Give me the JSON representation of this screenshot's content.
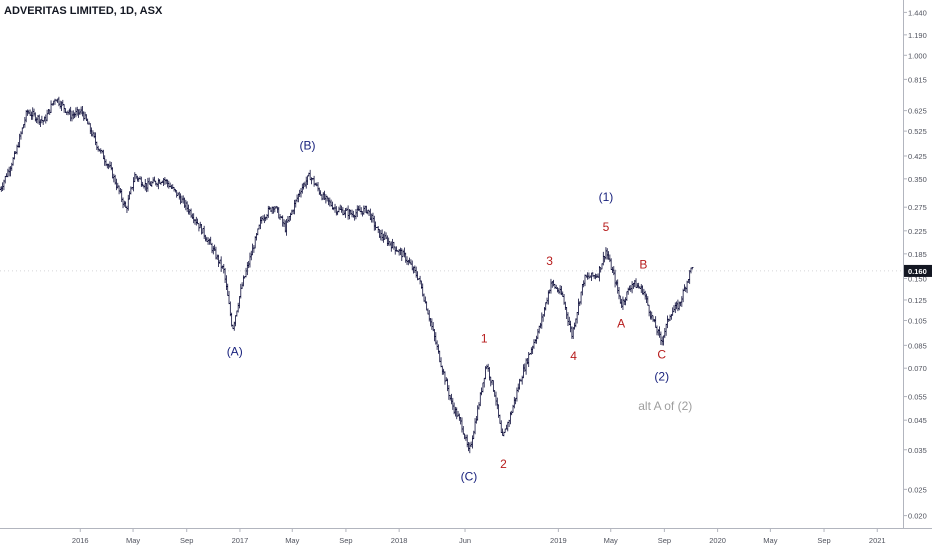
{
  "chart_data": {
    "type": "ohlc",
    "title": "ADVERITAS LIMITED, 1D, ASX",
    "y_scale": "log",
    "ylim": [
      0.018,
      1.6
    ],
    "xlim": [
      "2015-07-01",
      "2021-03-01"
    ],
    "y_ticks": [
      "0.020",
      "0.025",
      "0.035",
      "0.045",
      "0.055",
      "0.070",
      "0.085",
      "0.105",
      "0.125",
      "0.150",
      "0.185",
      "0.225",
      "0.275",
      "0.350",
      "0.425",
      "0.525",
      "0.625",
      "0.815",
      "1.000",
      "1.190",
      "1.440"
    ],
    "x_ticks": [
      {
        "label": "2016",
        "date": "2016-01-01"
      },
      {
        "label": "May",
        "date": "2016-05-01"
      },
      {
        "label": "Sep",
        "date": "2016-09-01"
      },
      {
        "label": "2017",
        "date": "2017-01-01"
      },
      {
        "label": "May",
        "date": "2017-05-01"
      },
      {
        "label": "Sep",
        "date": "2017-09-01"
      },
      {
        "label": "2018",
        "date": "2018-01-01"
      },
      {
        "label": "Jun",
        "date": "2018-06-01"
      },
      {
        "label": "2019",
        "date": "2019-01-01"
      },
      {
        "label": "May",
        "date": "2019-05-01"
      },
      {
        "label": "Sep",
        "date": "2019-09-01"
      },
      {
        "label": "2020",
        "date": "2020-01-01"
      },
      {
        "label": "May",
        "date": "2020-05-01"
      },
      {
        "label": "Sep",
        "date": "2020-09-01"
      },
      {
        "label": "2021",
        "date": "2021-01-01"
      }
    ],
    "price_path": [
      [
        "2015-07-01",
        0.32
      ],
      [
        "2015-08-05",
        0.43
      ],
      [
        "2015-09-01",
        0.62
      ],
      [
        "2015-10-10",
        0.57
      ],
      [
        "2015-11-05",
        0.7
      ],
      [
        "2015-12-10",
        0.6
      ],
      [
        "2016-01-05",
        0.62
      ],
      [
        "2016-02-10",
        0.46
      ],
      [
        "2016-03-10",
        0.38
      ],
      [
        "2016-04-15",
        0.27
      ],
      [
        "2016-05-05",
        0.36
      ],
      [
        "2016-06-01",
        0.33
      ],
      [
        "2016-07-10",
        0.35
      ],
      [
        "2016-08-15",
        0.3
      ],
      [
        "2016-09-20",
        0.25
      ],
      [
        "2016-10-25",
        0.2
      ],
      [
        "2016-11-25",
        0.16
      ],
      [
        "2016-12-15",
        0.098
      ],
      [
        "2017-01-05",
        0.14
      ],
      [
        "2017-01-25",
        0.18
      ],
      [
        "2017-02-20",
        0.25
      ],
      [
        "2017-03-20",
        0.28
      ],
      [
        "2017-04-15",
        0.23
      ],
      [
        "2017-05-20",
        0.32
      ],
      [
        "2017-06-10",
        0.36
      ],
      [
        "2017-07-10",
        0.3
      ],
      [
        "2017-08-10",
        0.27
      ],
      [
        "2017-09-15",
        0.26
      ],
      [
        "2017-10-20",
        0.27
      ],
      [
        "2017-11-15",
        0.22
      ],
      [
        "2017-12-15",
        0.2
      ],
      [
        "2018-01-15",
        0.18
      ],
      [
        "2018-02-15",
        0.15
      ],
      [
        "2018-03-10",
        0.11
      ],
      [
        "2018-04-05",
        0.075
      ],
      [
        "2018-05-01",
        0.052
      ],
      [
        "2018-05-25",
        0.043
      ],
      [
        "2018-06-10",
        0.034
      ],
      [
        "2018-07-01",
        0.05
      ],
      [
        "2018-07-20",
        0.073
      ],
      [
        "2018-08-10",
        0.055
      ],
      [
        "2018-08-25",
        0.038
      ],
      [
        "2018-09-15",
        0.048
      ],
      [
        "2018-10-05",
        0.063
      ],
      [
        "2018-10-25",
        0.078
      ],
      [
        "2018-11-20",
        0.1
      ],
      [
        "2018-12-15",
        0.145
      ],
      [
        "2019-01-10",
        0.13
      ],
      [
        "2019-02-01",
        0.093
      ],
      [
        "2019-03-01",
        0.15
      ],
      [
        "2019-04-01",
        0.155
      ],
      [
        "2019-04-20",
        0.19
      ],
      [
        "2019-05-10",
        0.15
      ],
      [
        "2019-05-25",
        0.12
      ],
      [
        "2019-06-20",
        0.145
      ],
      [
        "2019-07-15",
        0.135
      ],
      [
        "2019-08-01",
        0.11
      ],
      [
        "2019-08-25",
        0.088
      ],
      [
        "2019-09-15",
        0.112
      ],
      [
        "2019-10-05",
        0.12
      ],
      [
        "2019-10-25",
        0.15
      ],
      [
        "2019-11-05",
        0.17
      ]
    ],
    "annotations": [
      {
        "text": "(A)",
        "date": "2016-12-20",
        "price": 0.078,
        "color": "#1a237e"
      },
      {
        "text": "(B)",
        "date": "2017-06-05",
        "price": 0.45,
        "color": "#1a237e"
      },
      {
        "text": "(C)",
        "date": "2018-06-10",
        "price": 0.027,
        "color": "#1a237e"
      },
      {
        "text": "1",
        "date": "2018-07-15",
        "price": 0.087,
        "color": "#b71c1c"
      },
      {
        "text": "2",
        "date": "2018-08-28",
        "price": 0.03,
        "color": "#b71c1c"
      },
      {
        "text": "3",
        "date": "2018-12-12",
        "price": 0.168,
        "color": "#b71c1c"
      },
      {
        "text": "4",
        "date": "2019-02-05",
        "price": 0.075,
        "color": "#b71c1c"
      },
      {
        "text": "5",
        "date": "2019-04-20",
        "price": 0.225,
        "color": "#b71c1c"
      },
      {
        "text": "(1)",
        "date": "2019-04-20",
        "price": 0.29,
        "color": "#1a237e"
      },
      {
        "text": "A",
        "date": "2019-05-25",
        "price": 0.099,
        "color": "#b71c1c"
      },
      {
        "text": "B",
        "date": "2019-07-15",
        "price": 0.163,
        "color": "#b71c1c"
      },
      {
        "text": "C",
        "date": "2019-08-26",
        "price": 0.076,
        "color": "#b71c1c"
      },
      {
        "text": "(2)",
        "date": "2019-08-26",
        "price": 0.063,
        "color": "#1a237e"
      },
      {
        "text": "alt A of (2)",
        "date": "2019-09-03",
        "price": 0.049,
        "color": "#9e9e9e"
      }
    ],
    "current_price": {
      "label": "0.160",
      "value": 0.16,
      "color": "#131722"
    }
  }
}
